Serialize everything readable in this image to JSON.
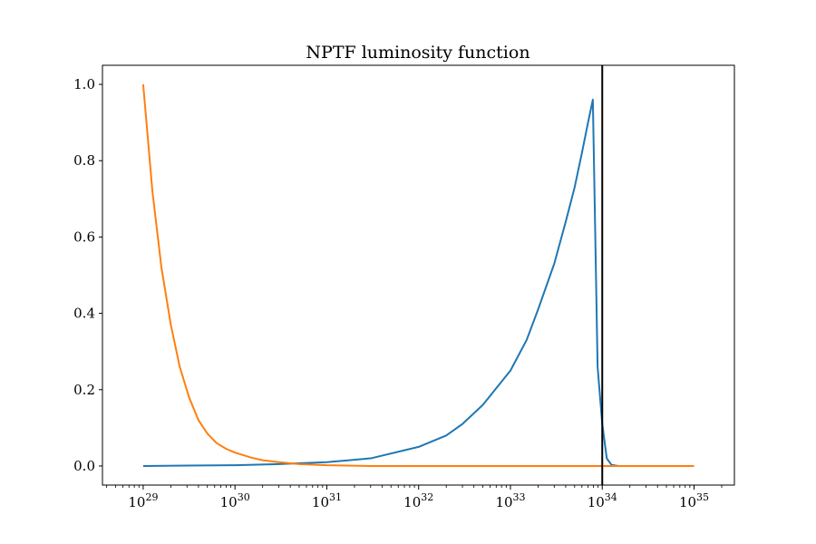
{
  "chart_data": {
    "type": "line",
    "title": "NPTF luminosity function",
    "xlabel": "",
    "ylabel": "",
    "xscale": "log",
    "xlim": [
      3.6e+28,
      2.75e+35
    ],
    "ylim": [
      -0.05,
      1.05
    ],
    "grid": false,
    "legend": "none",
    "x_ticks": [
      {
        "value": 1e+29,
        "base": "10",
        "exp": "29"
      },
      {
        "value": 1e+30,
        "base": "10",
        "exp": "30"
      },
      {
        "value": 1e+31,
        "base": "10",
        "exp": "31"
      },
      {
        "value": 1e+32,
        "base": "10",
        "exp": "32"
      },
      {
        "value": 1e+33,
        "base": "10",
        "exp": "33"
      },
      {
        "value": 1e+34,
        "base": "10",
        "exp": "34"
      },
      {
        "value": 1e+35,
        "base": "10",
        "exp": "35"
      }
    ],
    "y_ticks": [
      {
        "value": 0.0,
        "label": "0.0"
      },
      {
        "value": 0.2,
        "label": "0.2"
      },
      {
        "value": 0.4,
        "label": "0.4"
      },
      {
        "value": 0.6,
        "label": "0.6"
      },
      {
        "value": 0.8,
        "label": "0.8"
      },
      {
        "value": 1.0,
        "label": "1.0"
      }
    ],
    "vline": {
      "x": 1e+34,
      "color": "#000000"
    },
    "series": [
      {
        "color": "#1f77b4",
        "points": [
          [
            1e+29,
            0.0
          ],
          [
            3e+29,
            0.001
          ],
          [
            1e+30,
            0.002
          ],
          [
            3e+30,
            0.005
          ],
          [
            1e+31,
            0.01
          ],
          [
            3e+31,
            0.02
          ],
          [
            1e+32,
            0.05
          ],
          [
            2e+32,
            0.08
          ],
          [
            3e+32,
            0.11
          ],
          [
            5e+32,
            0.16
          ],
          [
            1e+33,
            0.25
          ],
          [
            1.5e+33,
            0.33
          ],
          [
            2e+33,
            0.41
          ],
          [
            3e+33,
            0.53
          ],
          [
            4e+33,
            0.64
          ],
          [
            5e+33,
            0.73
          ],
          [
            6e+33,
            0.82
          ],
          [
            7e+33,
            0.9
          ],
          [
            7.9e+33,
            0.96
          ],
          [
            8.9e+33,
            0.26
          ],
          [
            1e+34,
            0.11
          ],
          [
            1.12e+34,
            0.02
          ],
          [
            1.26e+34,
            0.003
          ],
          [
            1.5e+34,
            0.0
          ],
          [
            1e+35,
            0.0
          ]
        ]
      },
      {
        "color": "#ff7f0e",
        "points": [
          [
            1e+29,
            1.0
          ],
          [
            1.26e+29,
            0.72
          ],
          [
            1.58e+29,
            0.52
          ],
          [
            2e+29,
            0.37
          ],
          [
            2.5e+29,
            0.26
          ],
          [
            3.16e+29,
            0.18
          ],
          [
            4e+29,
            0.12
          ],
          [
            5e+29,
            0.085
          ],
          [
            6.3e+29,
            0.06
          ],
          [
            8e+29,
            0.045
          ],
          [
            1e+30,
            0.035
          ],
          [
            1.5e+30,
            0.022
          ],
          [
            2e+30,
            0.015
          ],
          [
            3e+30,
            0.01
          ],
          [
            5e+30,
            0.005
          ],
          [
            1e+31,
            0.002
          ],
          [
            3e+31,
            0.0
          ],
          [
            1e+32,
            0.0
          ],
          [
            1e+33,
            0.0
          ],
          [
            1e+34,
            0.0
          ],
          [
            1e+35,
            0.0
          ]
        ]
      }
    ]
  }
}
